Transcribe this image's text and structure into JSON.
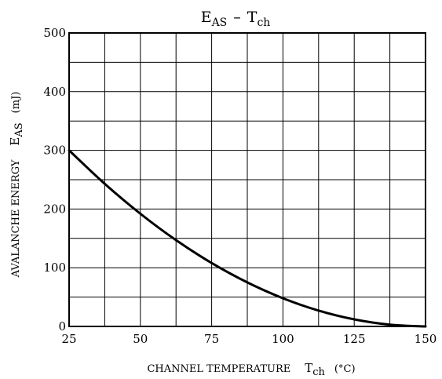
{
  "chart_data": {
    "type": "line",
    "title": {
      "main": "E",
      "sub1": "AS",
      "dash": "–",
      "main2": "T",
      "sub2": "ch"
    },
    "xlabel": {
      "text": "CHANNEL TEMPERATURE",
      "sym": "T",
      "sub": "ch",
      "unit": "(°C)"
    },
    "ylabel": {
      "text": "AVALANCHE ENERGY",
      "sym": "E",
      "sub": "AS",
      "unit": "(mJ)"
    },
    "xlim": [
      25,
      150
    ],
    "ylim": [
      0,
      500
    ],
    "x_ticks": [
      25,
      50,
      75,
      100,
      125,
      150
    ],
    "y_ticks": [
      0,
      100,
      200,
      300,
      400,
      500
    ],
    "x_minor_step": 12.5,
    "y_minor_step": 50,
    "grid": true,
    "series": [
      {
        "x": [
          25,
          37.5,
          50,
          62.5,
          75,
          87.5,
          100,
          112.5,
          125,
          137.5,
          150
        ],
        "values": [
          300,
          243,
          192,
          147,
          108,
          75,
          48,
          27,
          12,
          3,
          0
        ]
      }
    ]
  }
}
